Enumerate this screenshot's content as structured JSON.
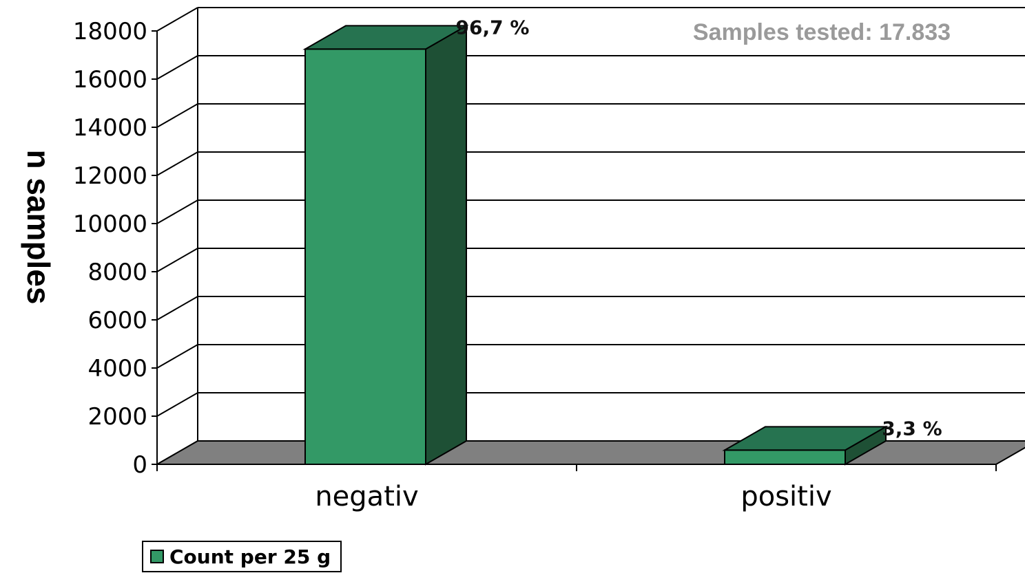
{
  "chart_data": {
    "type": "bar",
    "style": "3d",
    "categories": [
      "negativ",
      "positiv"
    ],
    "series": [
      {
        "name": "Count per 25 g",
        "values": [
          17245,
          588
        ]
      }
    ],
    "data_labels": [
      "96,7 %",
      "3,3 %"
    ],
    "ylabel": "n samples",
    "xlabel": "",
    "ylim": [
      0,
      18000
    ],
    "yticks": [
      0,
      2000,
      4000,
      6000,
      8000,
      10000,
      12000,
      14000,
      16000,
      18000
    ],
    "annotation": "Samples tested: 17.833",
    "grid": true,
    "legend_position": "bottom-left",
    "colors": {
      "bar_front": "#339966",
      "bar_top": "#267350",
      "bar_side": "#1e5035",
      "floor": "#808080",
      "annotation": "#9a9a9a"
    }
  }
}
